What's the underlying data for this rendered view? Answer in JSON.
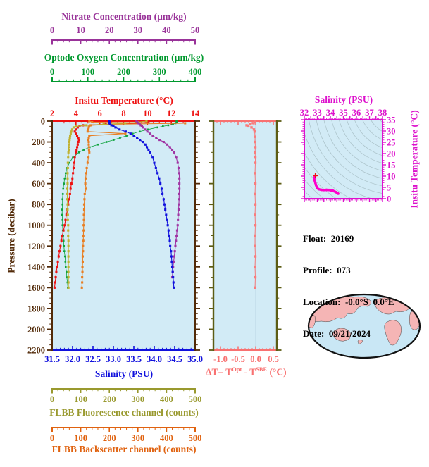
{
  "page": {
    "background": "#ffffff"
  },
  "float_info": {
    "lines": [
      {
        "label": "Float:",
        "value": "20169"
      },
      {
        "label": "Profile:",
        "value": "073"
      },
      {
        "label": "Location:",
        "value": "-0.0°S  0.0°E"
      },
      {
        "label": "Date:",
        "value": "09/21/2024"
      }
    ]
  },
  "map": {
    "name": "world-map-pacific-centered",
    "ocean_color": "#c9e7f5",
    "land_color": "#f5b5b5",
    "outline_color": "#111111"
  },
  "chart_data": [
    {
      "id": "main-profile-plot",
      "type": "line",
      "background": "#d2ebf6",
      "ylabel": "Pressure (decibar)",
      "y_axis": {
        "color": "#522a08",
        "lim": [
          0,
          2200
        ],
        "ticks": [
          "0",
          "200",
          "400",
          "600",
          "800",
          "1000",
          "1200",
          "1400",
          "1600",
          "1800",
          "2000",
          "2200"
        ],
        "minor_step": 50
      },
      "x_axes": {
        "nitrate": {
          "label": "Nitrate Concentration (µm/kg)",
          "color": "#993399",
          "lim": [
            0,
            50
          ],
          "ticks": [
            "0",
            "10",
            "20",
            "30",
            "40",
            "50"
          ],
          "minor_step": 2
        },
        "oxygen": {
          "label": "Optode Oxygen Concentration (µm/kg)",
          "color": "#00992e",
          "lim": [
            0,
            400
          ],
          "ticks": [
            "0",
            "100",
            "200",
            "300",
            "400"
          ],
          "minor_step": 20
        },
        "temperature": {
          "label": "Insitu Temperature (°C)",
          "color": "#ee1111",
          "lim": [
            2,
            14
          ],
          "ticks": [
            "2",
            "4",
            "6",
            "8",
            "10",
            "12",
            "14"
          ],
          "minor_step": 0.5
        },
        "salinity": {
          "label": "Salinity (PSU)",
          "color": "#1111dd",
          "lim": [
            31.5,
            35.0
          ],
          "ticks": [
            "31.5",
            "32.0",
            "32.5",
            "33.0",
            "33.5",
            "34.0",
            "34.5",
            "35.0"
          ],
          "minor_step": 0.1
        },
        "fluorescence": {
          "label": "FLBB Fluorescence channel (counts)",
          "color": "#99992e",
          "lim": [
            0,
            500
          ],
          "ticks": [
            "0",
            "100",
            "200",
            "300",
            "400",
            "500"
          ],
          "minor_step": 20
        },
        "backscatter": {
          "label": "FLBB Backscatter channel (counts)",
          "color": "#e0620f",
          "lim": [
            0,
            500
          ],
          "ticks": [
            "0",
            "100",
            "200",
            "300",
            "400",
            "500"
          ],
          "minor_step": 20
        }
      },
      "series": [
        {
          "name": "oxygen",
          "axis": "oxygen",
          "color": "#0da33c",
          "pressure": [
            0,
            10,
            20,
            30,
            40,
            50,
            60,
            80,
            100,
            120,
            140,
            160,
            180,
            200,
            225,
            250,
            275,
            300,
            350,
            400,
            450,
            500,
            550,
            600,
            650,
            700,
            750,
            800,
            850,
            900,
            950,
            1000,
            1050,
            1100,
            1150,
            1200,
            1250,
            1300,
            1350,
            1400,
            1450,
            1500,
            1550,
            1600
          ],
          "values": [
            348,
            348,
            345,
            338,
            325,
            310,
            295,
            268,
            245,
            225,
            208,
            190,
            172,
            152,
            128,
            105,
            88,
            75,
            58,
            48,
            42,
            38,
            35,
            33,
            31,
            30,
            29,
            29,
            28,
            28,
            29,
            29,
            30,
            31,
            32,
            33,
            34,
            36,
            37,
            38,
            40,
            41,
            43,
            44
          ]
        },
        {
          "name": "temperature",
          "axis": "temperature",
          "color": "#ee1111",
          "pressure": [
            0,
            10,
            20,
            30,
            40,
            50,
            60,
            80,
            100,
            120,
            140,
            160,
            180,
            200,
            225,
            250,
            275,
            300,
            350,
            400,
            450,
            500,
            550,
            600,
            650,
            700,
            750,
            800,
            850,
            900,
            950,
            1000,
            1050,
            1100,
            1150,
            1200,
            1250,
            1300,
            1350,
            1400,
            1450,
            1500,
            1550,
            1600
          ],
          "values": [
            10.1,
            10.0,
            9.2,
            6.5,
            4.6,
            4.3,
            4.15,
            4.0,
            3.9,
            4.0,
            4.1,
            4.2,
            4.25,
            4.2,
            4.15,
            4.1,
            4.05,
            4.0,
            3.9,
            3.85,
            3.8,
            3.75,
            3.7,
            3.62,
            3.55,
            3.5,
            3.42,
            3.35,
            3.28,
            3.2,
            3.12,
            3.05,
            2.95,
            2.85,
            2.78,
            2.7,
            2.62,
            2.55,
            2.48,
            2.42,
            2.35,
            2.3,
            2.25,
            2.2
          ]
        },
        {
          "name": "backscatter",
          "axis": "backscatter",
          "color": "#e87e22",
          "pressure": [
            0,
            10,
            20,
            30,
            40,
            50,
            60,
            80,
            100,
            120,
            140,
            160,
            180,
            200,
            225,
            250,
            275,
            300,
            350,
            400,
            450,
            500,
            550,
            600,
            650,
            700,
            750,
            800,
            850,
            900,
            950,
            1000,
            1050,
            1100,
            1150,
            1200,
            1250,
            1300,
            1350,
            1400,
            1450,
            1500,
            1550,
            1600
          ],
          "values": [
            130,
            140,
            465,
            200,
            135,
            130,
            128,
            126,
            124,
            256,
            130,
            128,
            127,
            128,
            128,
            129,
            129,
            130,
            127,
            124,
            121,
            119,
            117,
            116,
            119,
            114,
            113,
            112,
            112,
            111,
            111,
            110,
            110,
            109,
            109,
            108,
            108,
            107,
            107,
            106,
            106,
            105,
            105,
            104
          ]
        },
        {
          "name": "fluorescence",
          "axis": "fluorescence",
          "color": "#c0b12f",
          "pressure": [
            0,
            10,
            20,
            30,
            40,
            50,
            60,
            80,
            100,
            120,
            140,
            160,
            180,
            200,
            225,
            250,
            275,
            300,
            350,
            400,
            450,
            500,
            550,
            600,
            650,
            700,
            750,
            800,
            850,
            900,
            950,
            1000,
            1050,
            1100,
            1150,
            1200,
            1250,
            1300,
            1350,
            1400,
            1450,
            1500,
            1550,
            1600
          ],
          "values": [
            330,
            300,
            255,
            180,
            120,
            85,
            75,
            70,
            67,
            65,
            63,
            62,
            61,
            60,
            59,
            58,
            58,
            57,
            56,
            55,
            55,
            54,
            54,
            54,
            53,
            53,
            53,
            54,
            54,
            55,
            55,
            56,
            56,
            56,
            57,
            57,
            57,
            57,
            57,
            57,
            57,
            57,
            57,
            57
          ]
        },
        {
          "name": "nitrate",
          "axis": "nitrate",
          "color": "#a033a3",
          "pressure": [
            0,
            10,
            20,
            30,
            40,
            50,
            60,
            80,
            100,
            120,
            140,
            160,
            180,
            200,
            225,
            250,
            275,
            300,
            350,
            400,
            450,
            500,
            550,
            600,
            650,
            700,
            750,
            800,
            850,
            900,
            950,
            1000,
            1050,
            1100,
            1150,
            1200,
            1250,
            1300,
            1350,
            1400,
            1450,
            1500
          ],
          "values": [
            29.5,
            29.8,
            30.2,
            30.6,
            31.0,
            31.4,
            31.8,
            32.5,
            33.3,
            34.2,
            35.2,
            36.4,
            37.6,
            39.0,
            40.2,
            41.2,
            42.0,
            42.6,
            43.4,
            43.9,
            44.2,
            44.4,
            44.5,
            44.5,
            44.5,
            44.4,
            44.4,
            44.3,
            44.2,
            44.1,
            44.0,
            43.9,
            43.7,
            43.5,
            43.3,
            43.1,
            42.9,
            42.7,
            42.5,
            42.3,
            42.2,
            42.0
          ]
        },
        {
          "name": "salinity",
          "axis": "salinity",
          "color": "#1111dd",
          "pressure": [
            0,
            10,
            20,
            30,
            40,
            50,
            60,
            80,
            100,
            120,
            140,
            160,
            180,
            200,
            225,
            250,
            275,
            300,
            350,
            400,
            450,
            500,
            550,
            600,
            650,
            700,
            750,
            800,
            850,
            900,
            950,
            1000,
            1050,
            1100,
            1150,
            1200,
            1250,
            1300,
            1350,
            1400,
            1450,
            1500,
            1550,
            1600
          ],
          "values": [
            32.9,
            32.9,
            32.9,
            32.92,
            32.95,
            33.0,
            33.05,
            33.15,
            33.3,
            33.42,
            33.5,
            33.58,
            33.65,
            33.72,
            33.78,
            33.82,
            33.86,
            33.9,
            33.96,
            34.0,
            34.04,
            34.08,
            34.12,
            34.15,
            34.18,
            34.2,
            34.23,
            34.25,
            34.27,
            34.29,
            34.31,
            34.33,
            34.35,
            34.36,
            34.38,
            34.39,
            34.41,
            34.42,
            34.43,
            34.44,
            34.45,
            34.46,
            34.47,
            34.48
          ]
        }
      ]
    },
    {
      "id": "delta-t-plot",
      "type": "line",
      "background": "#d2ebf6",
      "xlabel_parts": {
        "p1": "ΔT= T",
        "sup1": "Opt",
        "p2": " - T",
        "sup2": "SBE",
        "p3": " (°C)"
      },
      "x_axis": {
        "color": "#f87171",
        "lim": [
          -1.2,
          0.6
        ],
        "ticks": [
          "-1.0",
          "-0.5",
          "0.0",
          "0.5"
        ],
        "minor_step": 0.1
      },
      "y_axis": {
        "color": "#5c5c14",
        "lim": [
          0,
          2200
        ],
        "minor_step": 100,
        "major_step": 200
      },
      "zero_line_color": "#b9d6e4",
      "series": [
        {
          "name": "delta-t",
          "color": "#f97c7c",
          "pressure": [
            0,
            10,
            20,
            30,
            40,
            50,
            60,
            80,
            100,
            150,
            200,
            250,
            300,
            350,
            400,
            500,
            600,
            700,
            800,
            900,
            1000,
            1100,
            1200,
            1300,
            1400,
            1500,
            1600
          ],
          "values": [
            -0.02,
            -0.03,
            -0.06,
            -0.15,
            -0.26,
            -0.22,
            -0.12,
            -0.05,
            -0.03,
            -0.02,
            -0.02,
            -0.01,
            -0.02,
            -0.01,
            -0.01,
            -0.02,
            -0.01,
            -0.02,
            -0.01,
            -0.02,
            -0.01,
            -0.02,
            -0.02,
            -0.01,
            -0.02,
            -0.01,
            -0.02
          ]
        }
      ]
    },
    {
      "id": "ts-diagram",
      "type": "scatter",
      "background": "#d2ebf6",
      "title": "Salinity (PSU)",
      "ylabel_right": "Insitu Temperature (°C)",
      "frame_color": "#dd11cc",
      "s_axis": {
        "lim": [
          32,
          38
        ],
        "ticks": [
          "32",
          "33",
          "34",
          "35",
          "36",
          "37",
          "38"
        ],
        "minor_step": 0.1,
        "mid_step": 0.5
      },
      "t_axis": {
        "lim": [
          0,
          35
        ],
        "ticks": [
          "0",
          "5",
          "10",
          "15",
          "20",
          "25",
          "30",
          "35"
        ],
        "minor_step": 1
      },
      "contour_color": "#a9c0c7",
      "curve": {
        "color": "#ff00cc",
        "start_marker_color": "#ee1111",
        "s": [
          32.85,
          32.8,
          32.78,
          32.8,
          32.85,
          32.9,
          32.95,
          33.0,
          33.1,
          33.3,
          33.5,
          33.7,
          33.9,
          34.05,
          34.2,
          34.32,
          34.42,
          34.5,
          34.56,
          34.6
        ],
        "t": [
          10.2,
          9.6,
          8.8,
          8.0,
          7.0,
          6.0,
          5.2,
          4.6,
          4.2,
          3.9,
          3.8,
          3.9,
          3.85,
          3.7,
          3.5,
          3.2,
          2.9,
          2.6,
          2.4,
          2.2
        ]
      }
    }
  ]
}
